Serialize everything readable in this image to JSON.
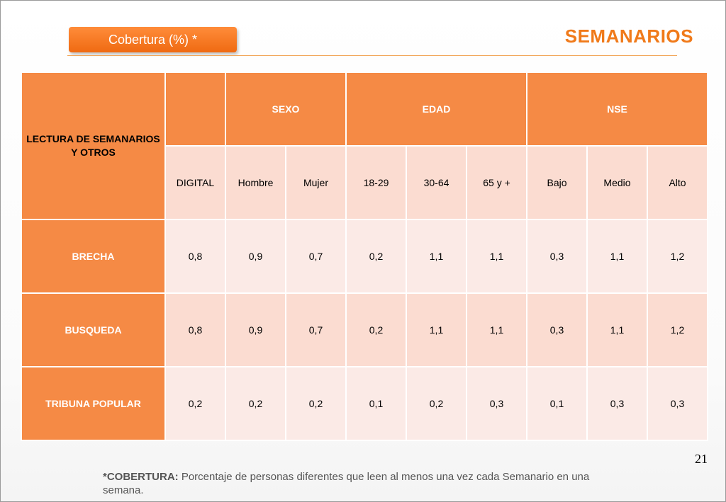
{
  "badge": {
    "label": "Cobertura (%) *"
  },
  "title": "SEMANARIOS",
  "table": {
    "corner_label": "LECTURA DE SEMANARIOS Y OTROS",
    "groups": {
      "sexo": "SEXO",
      "edad": "EDAD",
      "nse": "NSE"
    },
    "subheaders": [
      "DIGITAL",
      "Hombre",
      "Mujer",
      "18-29",
      "30-64",
      "65 y +",
      "Bajo",
      "Medio",
      "Alto"
    ],
    "rows": [
      {
        "label": "BRECHA",
        "values": [
          "0,8",
          "0,9",
          "0,7",
          "0,2",
          "1,1",
          "1,1",
          "0,3",
          "1,1",
          "1,2"
        ]
      },
      {
        "label": "BUSQUEDA",
        "values": [
          "0,8",
          "0,9",
          "0,7",
          "0,2",
          "1,1",
          "1,1",
          "0,3",
          "1,1",
          "1,2"
        ]
      },
      {
        "label": "TRIBUNA POPULAR",
        "values": [
          "0,2",
          "0,2",
          "0,2",
          "0,1",
          "0,2",
          "0,3",
          "0,1",
          "0,3",
          "0,3"
        ]
      }
    ]
  },
  "page_number": "21",
  "footnote": {
    "term": "*COBERTURA:",
    "text": " Porcentaje de personas diferentes que leen al menos una vez cada Semanario en una semana."
  },
  "colors": {
    "accent": "#f58a45",
    "title": "#f07a1a",
    "cell_light": "#fbeae6",
    "cell_mid": "#fbdcd1"
  }
}
